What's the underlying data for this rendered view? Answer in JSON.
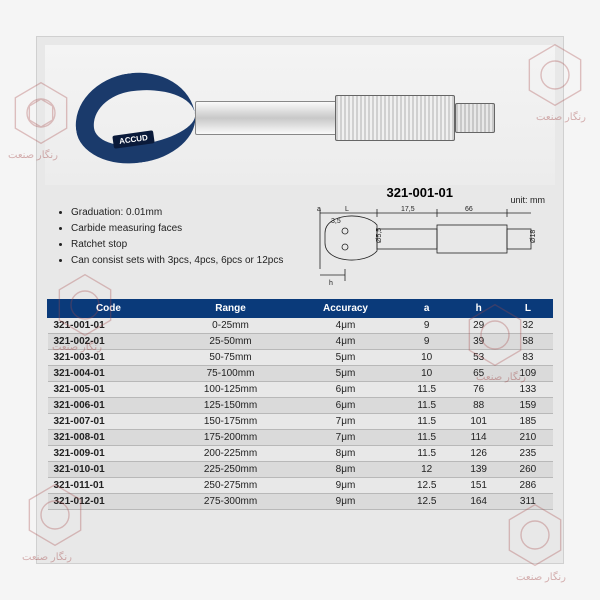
{
  "brand": "ACCUD",
  "model": "321-001-01",
  "unit_label": "unit: mm",
  "diagram": {
    "labels": {
      "a": "a",
      "L": "L",
      "d1": "3,5",
      "d2": "17,5",
      "w": "66",
      "dia1": "Ø5,5",
      "dia2": "Ø18",
      "h": "h"
    }
  },
  "bullets": [
    "Graduation: 0.01mm",
    "Carbide measuring faces",
    "Ratchet stop",
    "Can consist sets with 3pcs, 4pcs, 6pcs or 12pcs"
  ],
  "table": {
    "columns": [
      "Code",
      "Range",
      "Accuracy",
      "a",
      "h",
      "L"
    ],
    "rows": [
      [
        "321-001-01",
        "0-25mm",
        "4μm",
        "9",
        "29",
        "32"
      ],
      [
        "321-002-01",
        "25-50mm",
        "4μm",
        "9",
        "39",
        "58"
      ],
      [
        "321-003-01",
        "50-75mm",
        "5μm",
        "10",
        "53",
        "83"
      ],
      [
        "321-004-01",
        "75-100mm",
        "5μm",
        "10",
        "65",
        "109"
      ],
      [
        "321-005-01",
        "100-125mm",
        "6μm",
        "11.5",
        "76",
        "133"
      ],
      [
        "321-006-01",
        "125-150mm",
        "6μm",
        "11.5",
        "88",
        "159"
      ],
      [
        "321-007-01",
        "150-175mm",
        "7μm",
        "11.5",
        "101",
        "185"
      ],
      [
        "321-008-01",
        "175-200mm",
        "7μm",
        "11.5",
        "114",
        "210"
      ],
      [
        "321-009-01",
        "200-225mm",
        "8μm",
        "11.5",
        "126",
        "235"
      ],
      [
        "321-010-01",
        "225-250mm",
        "8μm",
        "12",
        "139",
        "260"
      ],
      [
        "321-011-01",
        "250-275mm",
        "9μm",
        "12.5",
        "151",
        "286"
      ],
      [
        "321-012-01",
        "275-300mm",
        "9μm",
        "12.5",
        "164",
        "311"
      ]
    ]
  },
  "watermark_text": "رنگار صنعت",
  "colors": {
    "header_bg": "#0a3a7a",
    "frame": "#1a3a6b",
    "wm": "#a84848"
  }
}
